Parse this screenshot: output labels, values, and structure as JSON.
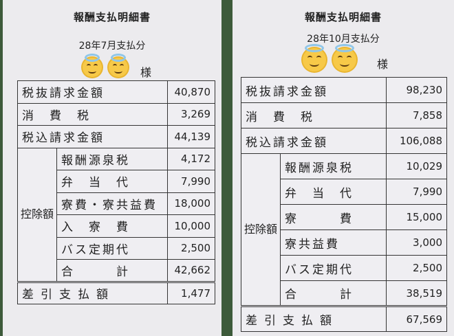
{
  "slips": [
    {
      "title": "報酬支払明細書",
      "period": "28年7月支払分",
      "honorific": "様",
      "rows_top": [
        {
          "label": "税抜請求金額",
          "value": "40,870"
        },
        {
          "label": "消　費　税",
          "value": "3,269"
        },
        {
          "label": "税込請求金額",
          "value": "44,139"
        }
      ],
      "group_label": "控除額",
      "deductions": [
        {
          "label": "報酬源泉税",
          "value": "4,172"
        },
        {
          "label": "弁　当　代",
          "value": "7,990"
        },
        {
          "label": "寮費・寮共益費",
          "value": "18,000"
        },
        {
          "label": "入　寮　費",
          "value": "10,000"
        },
        {
          "label": "バス定期代",
          "value": "2,500"
        },
        {
          "label": "合　　　計",
          "value": "42,662"
        }
      ],
      "net": {
        "label": "差引支払額",
        "value": "1,477"
      }
    },
    {
      "title": "報酬支払明細書",
      "period": "28年10月支払分",
      "honorific": "様",
      "rows_top": [
        {
          "label": "税抜請求金額",
          "value": "98,230"
        },
        {
          "label": "消　費　税",
          "value": "7,858"
        },
        {
          "label": "税込請求金額",
          "value": "106,088"
        }
      ],
      "group_label": "控除額",
      "deductions": [
        {
          "label": "報酬源泉税",
          "value": "10,029"
        },
        {
          "label": "弁　当　代",
          "value": "7,990"
        },
        {
          "label": "寮　　　費",
          "value": "15,000"
        },
        {
          "label": "寮共益費",
          "value": "3,000"
        },
        {
          "label": "バス定期代",
          "value": "2,500"
        },
        {
          "label": "合　　　計",
          "value": "38,519"
        }
      ],
      "net": {
        "label": "差引支払額",
        "value": "67,569"
      }
    }
  ],
  "overlay_icon": "halo-smiling-face-emoji"
}
